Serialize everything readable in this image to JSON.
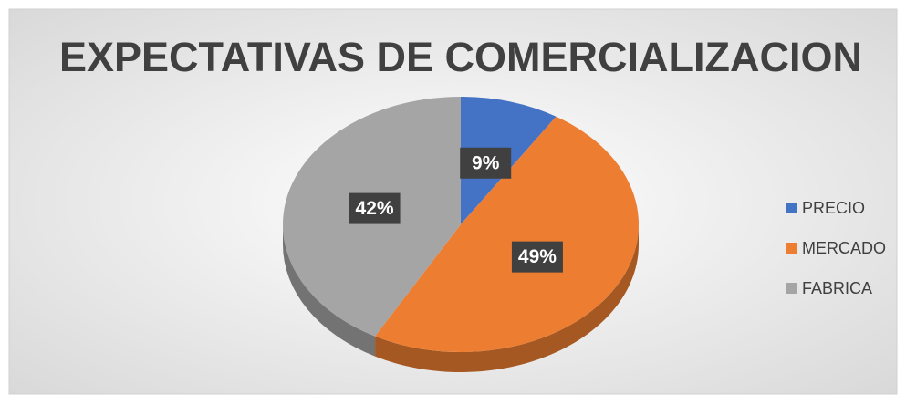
{
  "chart_data": {
    "type": "pie",
    "title": "EXPECTATIVAS DE COMERCIALIZACION",
    "categories": [
      "PRECIO",
      "MERCADO",
      "FABRICA"
    ],
    "values": [
      9,
      49,
      42
    ],
    "value_labels": [
      "9%",
      "49%",
      "42%"
    ],
    "colors": [
      "#4472c4",
      "#ed7d31",
      "#a5a5a5"
    ],
    "legend": "right"
  }
}
